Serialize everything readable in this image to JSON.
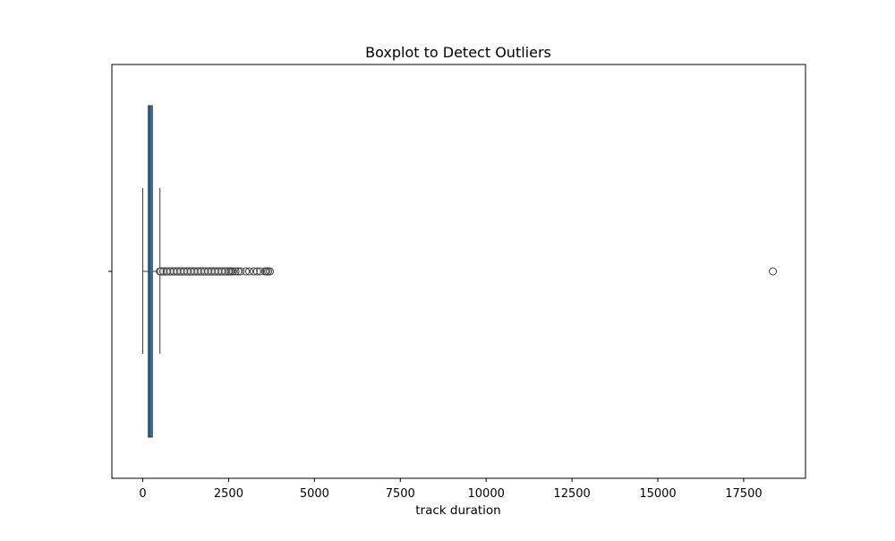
{
  "chart_data": {
    "type": "boxplot",
    "title": "Boxplot to Detect Outliers",
    "xlabel": "track duration",
    "ylabel": "",
    "orientation": "horizontal",
    "xlim": [
      -900,
      19300
    ],
    "xticks": [
      0,
      2500,
      5000,
      7500,
      10000,
      12500,
      15000,
      17500
    ],
    "xtick_labels": [
      "0",
      "2500",
      "5000",
      "7500",
      "10000",
      "12500",
      "15000",
      "17500"
    ],
    "grid": false,
    "colors": {
      "box_fill": "#3a76a4",
      "lines": "#3a3a3a",
      "outlier_edge": "#3a3a3a"
    },
    "box": {
      "whisker_low": 0,
      "q1": 160,
      "median": 205,
      "q3": 280,
      "whisker_high": 500
    },
    "outliers": {
      "dense_range": [
        500,
        2550
      ],
      "points": [
        520,
        600,
        700,
        800,
        900,
        1000,
        1100,
        1200,
        1300,
        1400,
        1500,
        1600,
        1700,
        1800,
        1900,
        2000,
        2100,
        2200,
        2300,
        2400,
        2500,
        2560,
        2620,
        2700,
        2780,
        2850,
        3000,
        3100,
        3230,
        3330,
        3420,
        3560,
        3600,
        3650,
        3700,
        18350
      ]
    }
  }
}
